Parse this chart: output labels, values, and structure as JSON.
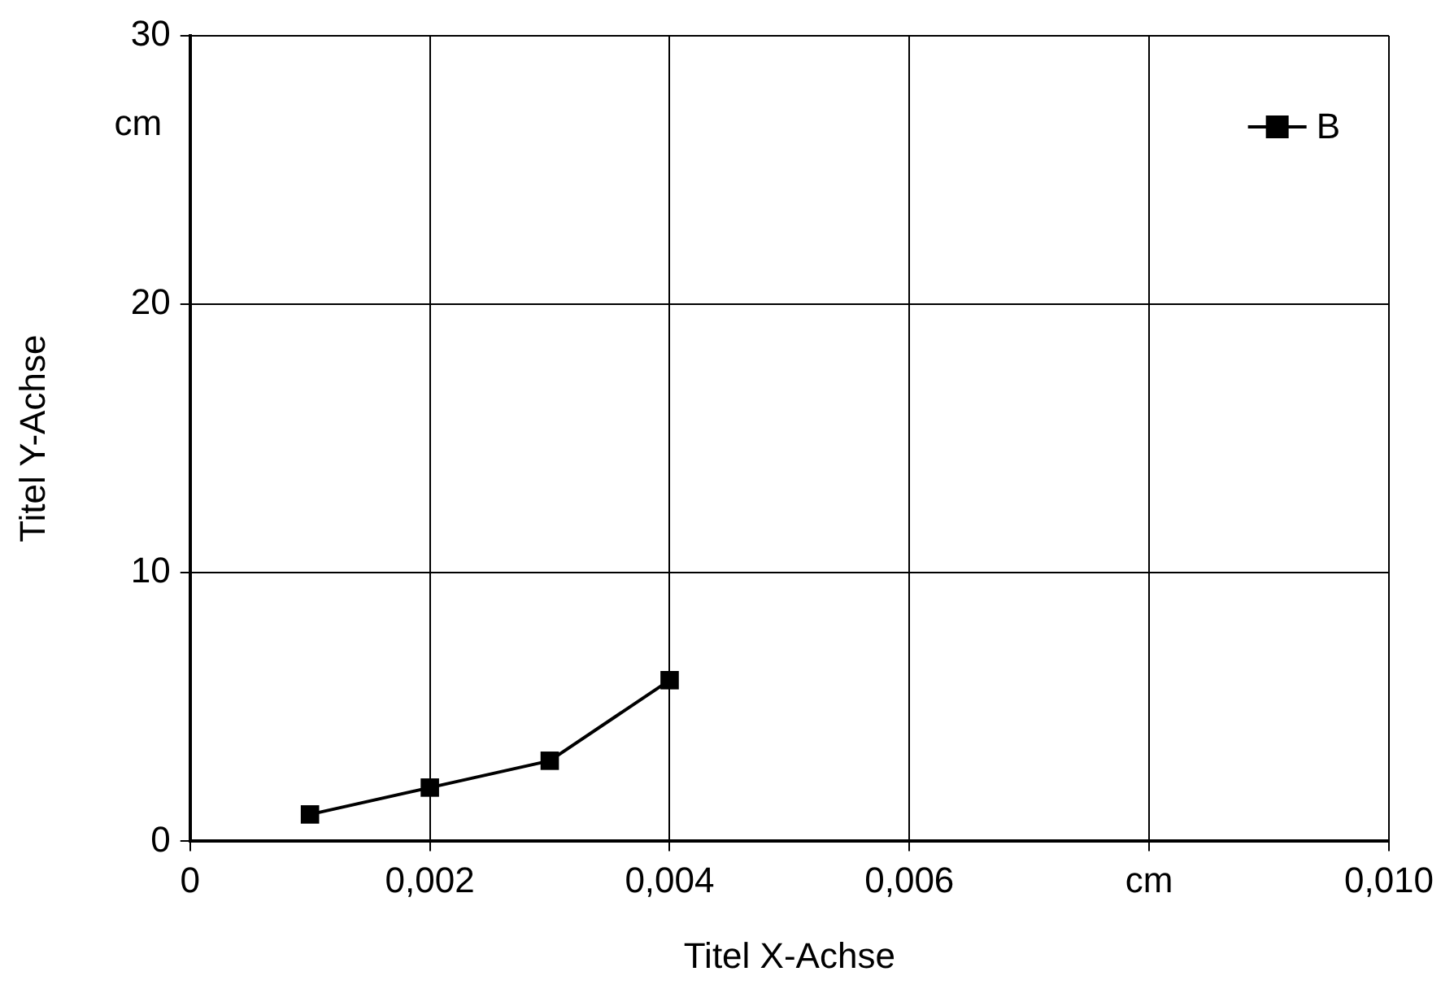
{
  "chart_data": {
    "type": "line",
    "xlabel": "Titel X-Achse",
    "ylabel": "Titel Y-Achse",
    "x": [
      0.001,
      0.002,
      0.003,
      0.004
    ],
    "series": [
      {
        "name": "B",
        "color": "#000000",
        "values": [
          1,
          2,
          3,
          6
        ]
      }
    ],
    "xlim": [
      0,
      0.01
    ],
    "xticks": [
      0,
      {
        "value": 0.002,
        "label": "0,002"
      },
      {
        "value": 0.004,
        "label": "0,004"
      },
      {
        "value": 0.006,
        "label": "0,006"
      },
      {
        "value": 0.008,
        "label": "cm"
      },
      {
        "value": 0.01,
        "label": "0,010"
      }
    ],
    "ylim": [
      0,
      30
    ],
    "yticks": [
      0,
      10,
      20,
      30
    ],
    "annotations": [
      "cm"
    ],
    "grid": true,
    "legend": "top right",
    "marker": "square",
    "line_style": "solid"
  }
}
